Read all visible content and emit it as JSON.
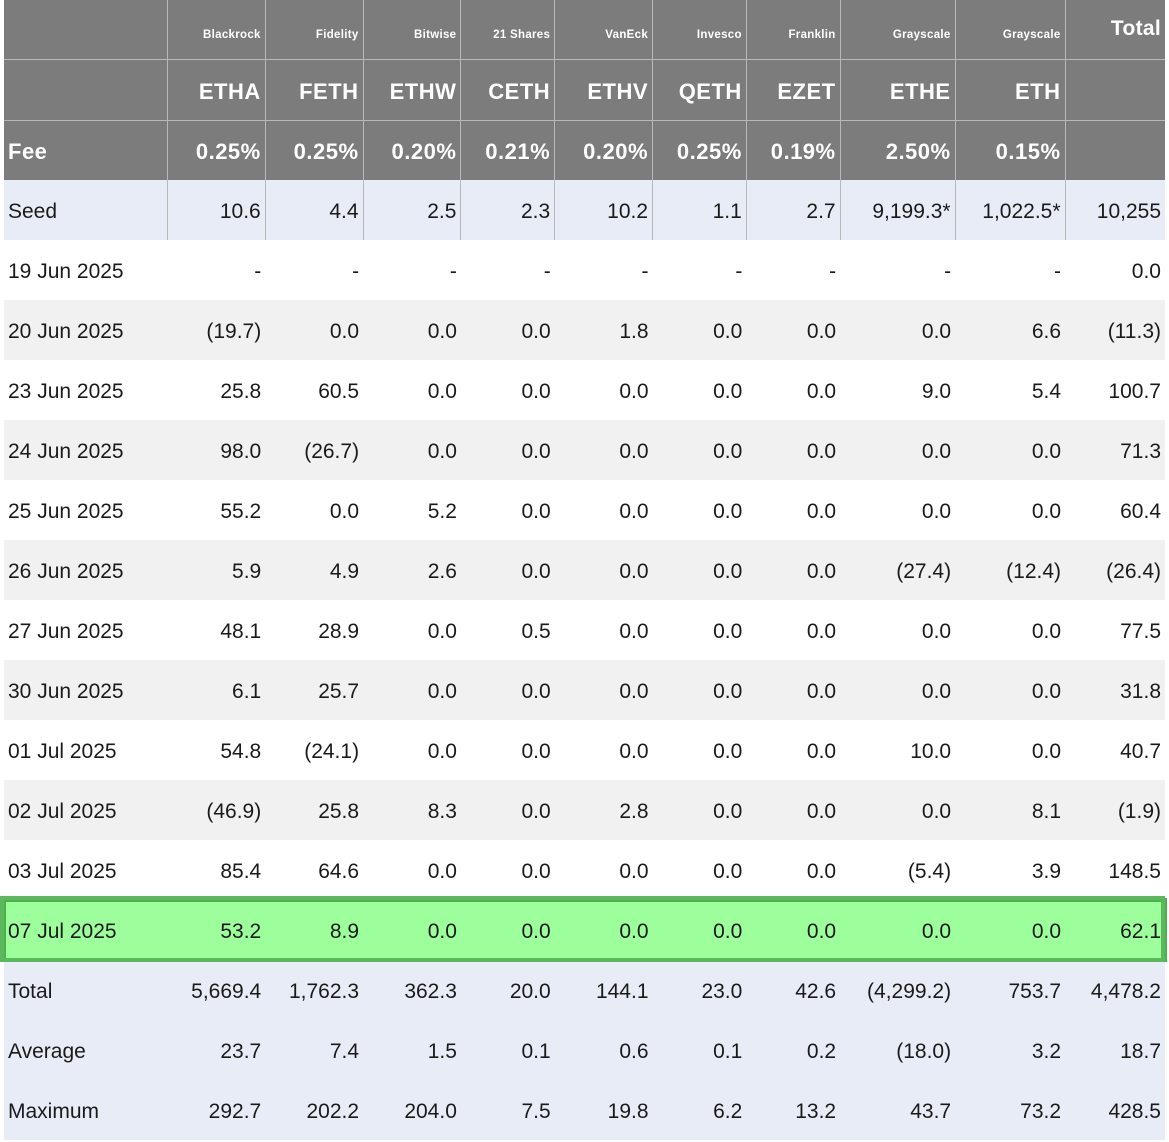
{
  "columns": [
    {
      "issuer": "Blackrock",
      "ticker": "ETHA",
      "fee": "0.25%"
    },
    {
      "issuer": "Fidelity",
      "ticker": "FETH",
      "fee": "0.25%"
    },
    {
      "issuer": "Bitwise",
      "ticker": "ETHW",
      "fee": "0.20%"
    },
    {
      "issuer": "21 Shares",
      "ticker": "CETH",
      "fee": "0.21%"
    },
    {
      "issuer": "VanEck",
      "ticker": "ETHV",
      "fee": "0.20%"
    },
    {
      "issuer": "Invesco",
      "ticker": "QETH",
      "fee": "0.25%"
    },
    {
      "issuer": "Franklin",
      "ticker": "EZET",
      "fee": "0.19%"
    },
    {
      "issuer": "Grayscale",
      "ticker": "ETHE",
      "fee": "2.50%"
    },
    {
      "issuer": "Grayscale",
      "ticker": "ETH",
      "fee": "0.15%"
    }
  ],
  "header": {
    "total_label": "Total",
    "fee_label": "Fee"
  },
  "rows": [
    {
      "label": "Seed",
      "values": [
        "10.6",
        "4.4",
        "2.5",
        "2.3",
        "10.2",
        "1.1",
        "2.7",
        "9,199.3*",
        "1,022.5*",
        "10,255"
      ]
    },
    {
      "label": "19 Jun 2025",
      "values": [
        "-",
        "-",
        "-",
        "-",
        "-",
        "-",
        "-",
        "-",
        "-",
        "0.0"
      ]
    },
    {
      "label": "20 Jun 2025",
      "values": [
        "(19.7)",
        "0.0",
        "0.0",
        "0.0",
        "1.8",
        "0.0",
        "0.0",
        "0.0",
        "6.6",
        "(11.3)"
      ]
    },
    {
      "label": "23 Jun 2025",
      "values": [
        "25.8",
        "60.5",
        "0.0",
        "0.0",
        "0.0",
        "0.0",
        "0.0",
        "9.0",
        "5.4",
        "100.7"
      ]
    },
    {
      "label": "24 Jun 2025",
      "values": [
        "98.0",
        "(26.7)",
        "0.0",
        "0.0",
        "0.0",
        "0.0",
        "0.0",
        "0.0",
        "0.0",
        "71.3"
      ]
    },
    {
      "label": "25 Jun 2025",
      "values": [
        "55.2",
        "0.0",
        "5.2",
        "0.0",
        "0.0",
        "0.0",
        "0.0",
        "0.0",
        "0.0",
        "60.4"
      ]
    },
    {
      "label": "26 Jun 2025",
      "values": [
        "5.9",
        "4.9",
        "2.6",
        "0.0",
        "0.0",
        "0.0",
        "0.0",
        "(27.4)",
        "(12.4)",
        "(26.4)"
      ]
    },
    {
      "label": "27 Jun 2025",
      "values": [
        "48.1",
        "28.9",
        "0.0",
        "0.5",
        "0.0",
        "0.0",
        "0.0",
        "0.0",
        "0.0",
        "77.5"
      ]
    },
    {
      "label": "30 Jun 2025",
      "values": [
        "6.1",
        "25.7",
        "0.0",
        "0.0",
        "0.0",
        "0.0",
        "0.0",
        "0.0",
        "0.0",
        "31.8"
      ]
    },
    {
      "label": "01 Jul 2025",
      "values": [
        "54.8",
        "(24.1)",
        "0.0",
        "0.0",
        "0.0",
        "0.0",
        "0.0",
        "10.0",
        "0.0",
        "40.7"
      ]
    },
    {
      "label": "02 Jul 2025",
      "values": [
        "(46.9)",
        "25.8",
        "8.3",
        "0.0",
        "2.8",
        "0.0",
        "0.0",
        "0.0",
        "8.1",
        "(1.9)"
      ]
    },
    {
      "label": "03 Jul 2025",
      "values": [
        "85.4",
        "64.6",
        "0.0",
        "0.0",
        "0.0",
        "0.0",
        "0.0",
        "(5.4)",
        "3.9",
        "148.5"
      ]
    },
    {
      "label": "07 Jul 2025",
      "values": [
        "53.2",
        "8.9",
        "0.0",
        "0.0",
        "0.0",
        "0.0",
        "0.0",
        "0.0",
        "0.0",
        "62.1"
      ]
    },
    {
      "label": "Total",
      "values": [
        "5,669.4",
        "1,762.3",
        "362.3",
        "20.0",
        "144.1",
        "23.0",
        "42.6",
        "(4,299.2)",
        "753.7",
        "4,478.2"
      ]
    },
    {
      "label": "Average",
      "values": [
        "23.7",
        "7.4",
        "1.5",
        "0.1",
        "0.6",
        "0.1",
        "0.2",
        "(18.0)",
        "3.2",
        "18.7"
      ]
    },
    {
      "label": "Maximum",
      "values": [
        "292.7",
        "202.2",
        "204.0",
        "7.5",
        "19.8",
        "6.2",
        "13.2",
        "43.7",
        "73.2",
        "428.5"
      ]
    }
  ],
  "colors": {
    "header_bg": "#7c7c7c",
    "negative": "#e0141e",
    "highlight_bg": "#9cff9c",
    "highlight_border": "#4cb34c",
    "blue_row": "#e8ecf6",
    "grey_row": "#f1f1f1"
  }
}
